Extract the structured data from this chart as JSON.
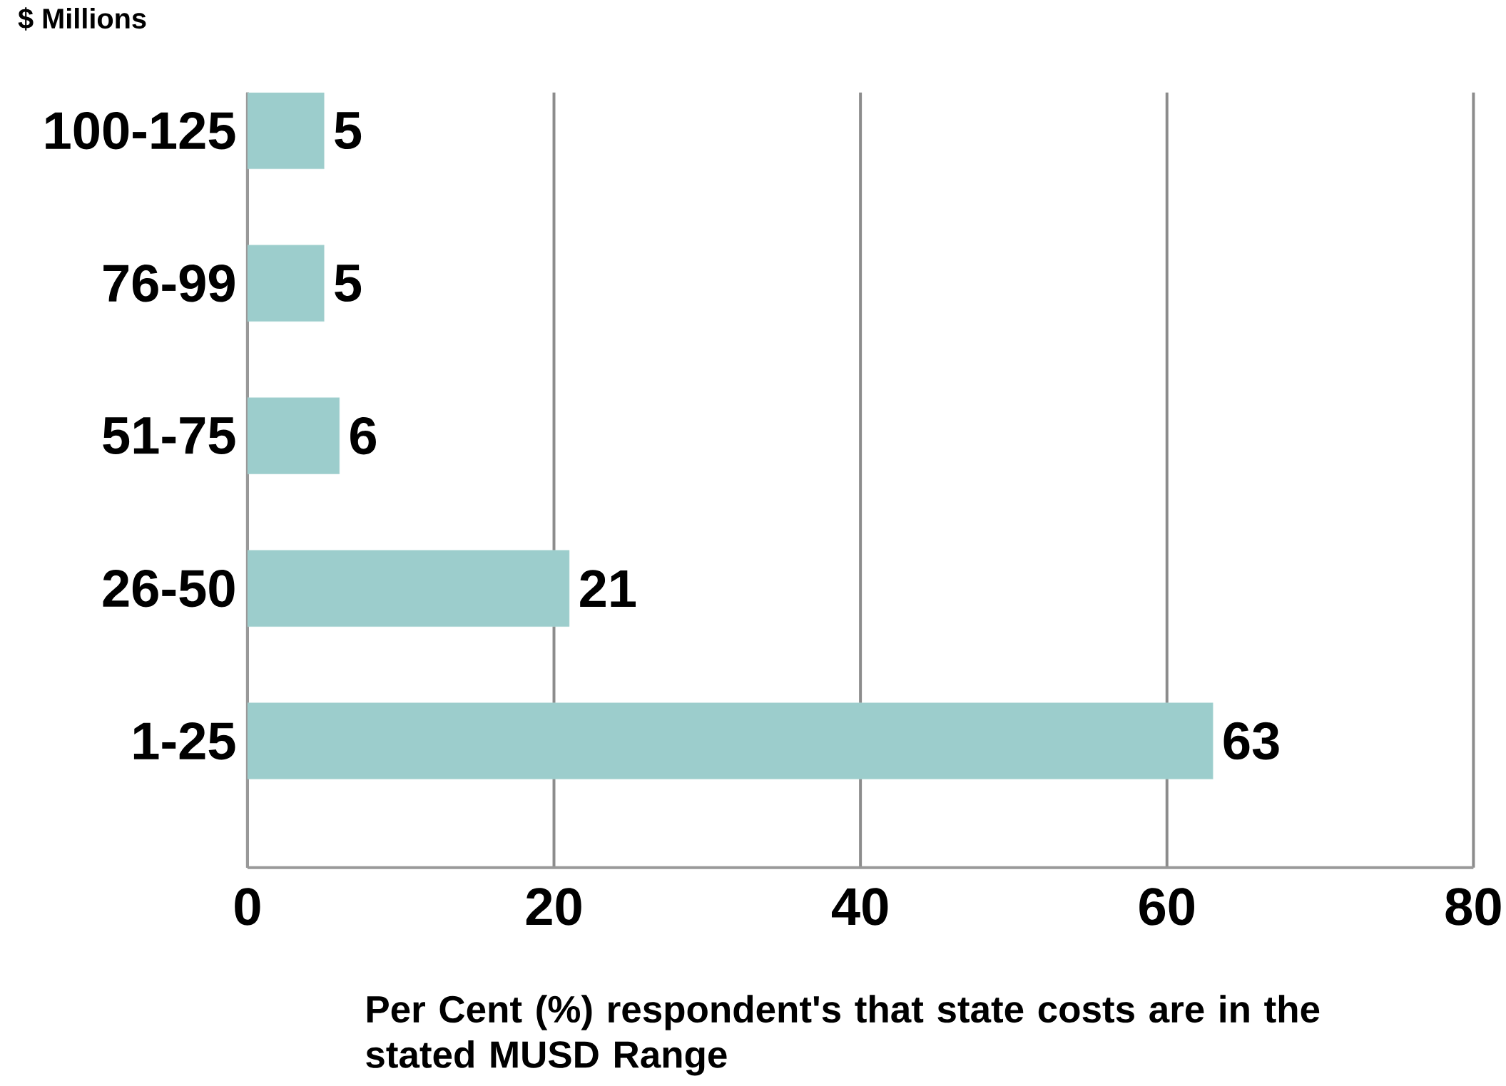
{
  "chart_data": {
    "type": "bar",
    "orientation": "horizontal",
    "ylabel": "$ Millions",
    "xlabel": "Per Cent (%) respondent's that state costs are in the stated MUSD Range",
    "categories": [
      "100-125",
      "76-99",
      "51-75",
      "26-50",
      "1-25"
    ],
    "values": [
      5,
      5,
      6,
      21,
      63
    ],
    "color": "#9ccdcc",
    "data_labels": true,
    "xlim": [
      0,
      80
    ],
    "xticks": [
      0,
      20,
      40,
      60,
      80
    ],
    "grid": "x"
  }
}
